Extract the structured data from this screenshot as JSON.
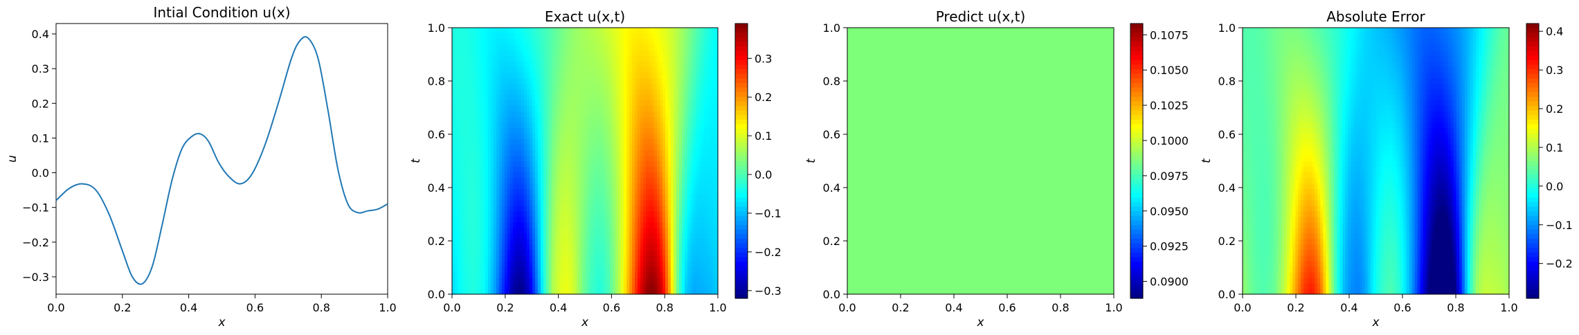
{
  "chart_data": [
    {
      "type": "line",
      "title": "Intial Condition u(x)",
      "xlabel": "x",
      "ylabel": "u",
      "xlim": [
        0.0,
        1.0
      ],
      "ylim": [
        -0.35,
        0.43
      ],
      "xticks": [
        "0.0",
        "0.2",
        "0.4",
        "0.6",
        "0.8",
        "1.0"
      ],
      "yticks": [
        "−0.3",
        "−0.2",
        "−0.1",
        "0.0",
        "0.1",
        "0.2",
        "0.3",
        "0.4"
      ],
      "series": [
        {
          "color": "#1f77b4",
          "x": [
            0.0,
            0.04,
            0.08,
            0.12,
            0.16,
            0.2,
            0.23,
            0.26,
            0.29,
            0.32,
            0.35,
            0.38,
            0.41,
            0.435,
            0.46,
            0.49,
            0.52,
            0.555,
            0.59,
            0.63,
            0.67,
            0.71,
            0.735,
            0.76,
            0.79,
            0.82,
            0.85,
            0.88,
            0.91,
            0.94,
            0.97,
            1.0
          ],
          "y": [
            -0.08,
            -0.045,
            -0.032,
            -0.05,
            -0.12,
            -0.225,
            -0.3,
            -0.32,
            -0.27,
            -0.15,
            -0.02,
            0.07,
            0.105,
            0.112,
            0.09,
            0.03,
            -0.01,
            -0.032,
            -0.005,
            0.08,
            0.2,
            0.33,
            0.38,
            0.388,
            0.33,
            0.18,
            0.01,
            -0.09,
            -0.115,
            -0.11,
            -0.105,
            -0.09
          ]
        }
      ],
      "grid": false
    },
    {
      "type": "heatmap",
      "title": "Exact u(x,t)",
      "xlabel": "x",
      "ylabel": "t",
      "xlim": [
        0.0,
        1.0
      ],
      "ylim": [
        0.0,
        1.0
      ],
      "xticks": [
        "0.0",
        "0.2",
        "0.4",
        "0.6",
        "0.8",
        "1.0"
      ],
      "yticks": [
        "0.0",
        "0.2",
        "0.4",
        "0.6",
        "0.8",
        "1.0"
      ],
      "colormap": "jet",
      "clim": [
        -0.32,
        0.39
      ],
      "colorbar_ticks": [
        "−0.3",
        "−0.2",
        "−0.1",
        "0.0",
        "0.1",
        "0.2",
        "0.3"
      ]
    },
    {
      "type": "heatmap",
      "title": "Predict u(x,t)",
      "xlabel": "x",
      "ylabel": "t",
      "xlim": [
        0.0,
        1.0
      ],
      "ylim": [
        0.0,
        1.0
      ],
      "xticks": [
        "0.0",
        "0.2",
        "0.4",
        "0.6",
        "0.8",
        "1.0"
      ],
      "yticks": [
        "0.0",
        "0.2",
        "0.4",
        "0.6",
        "0.8",
        "1.0"
      ],
      "colormap": "jet",
      "clim": [
        0.0888,
        0.1083
      ],
      "uniform_value": 0.0985,
      "fill_color": "#7dff7a",
      "colorbar_ticks": [
        "0.0900",
        "0.0925",
        "0.0950",
        "0.0975",
        "0.1000",
        "0.1025",
        "0.1050",
        "0.1075"
      ]
    },
    {
      "type": "heatmap",
      "title": "Absolute Error",
      "xlabel": "x",
      "ylabel": "t",
      "xlim": [
        0.0,
        1.0
      ],
      "ylim": [
        0.0,
        1.0
      ],
      "xticks": [
        "0.0",
        "0.2",
        "0.4",
        "0.6",
        "0.8",
        "1.0"
      ],
      "yticks": [
        "0.0",
        "0.2",
        "0.4",
        "0.6",
        "0.8",
        "1.0"
      ],
      "colormap": "jet",
      "clim": [
        -0.29,
        0.42
      ],
      "colorbar_ticks": [
        "−0.2",
        "−0.1",
        "0.0",
        "0.1",
        "0.2",
        "0.3",
        "0.4"
      ]
    }
  ]
}
